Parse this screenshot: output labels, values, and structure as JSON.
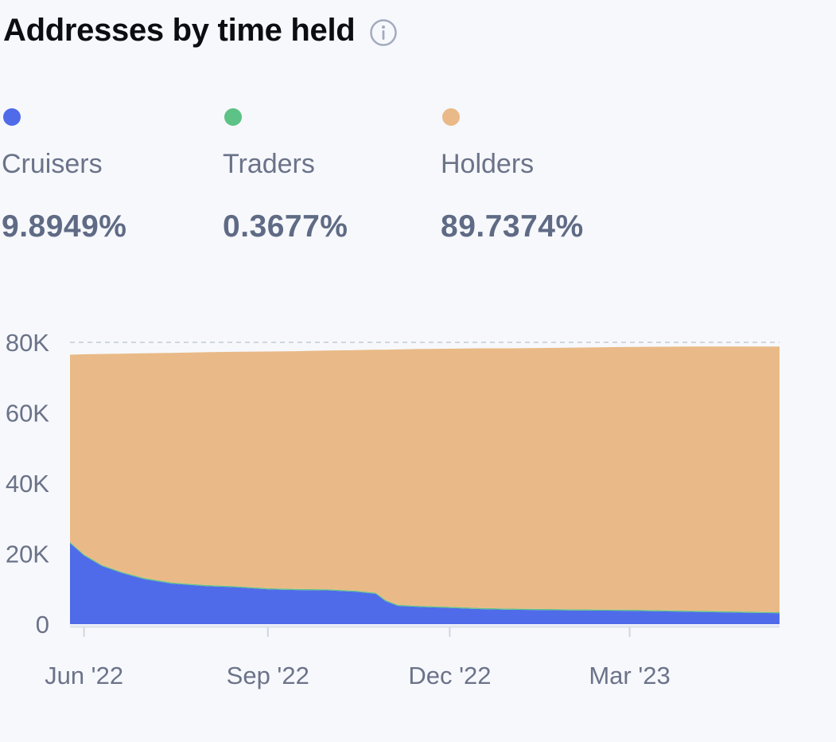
{
  "header": {
    "title": "Addresses by time held",
    "info_icon": "info-circle-icon"
  },
  "legend": [
    {
      "name": "Cruisers",
      "value": "9.8949%",
      "color": "#4f6bea"
    },
    {
      "name": "Traders",
      "value": "0.3677%",
      "color": "#5cc285"
    },
    {
      "name": "Holders",
      "value": "89.7374%",
      "color": "#e9ba87"
    }
  ],
  "chart_data": {
    "type": "area",
    "stacked": true,
    "x_tick_labels": [
      "Jun '22",
      "Sep '22",
      "Dec '22",
      "Mar '23"
    ],
    "y_tick_labels": [
      "0",
      "20K",
      "40K",
      "60K",
      "80K"
    ],
    "ylim": [
      0,
      80000
    ],
    "x_range": [
      "2022-05-25",
      "2023-05-15"
    ],
    "grid": "dashed top line",
    "series": [
      {
        "name": "Cruisers",
        "color": "#4f6bea",
        "x": [
          "2022-05-25",
          "2022-06-01",
          "2022-06-10",
          "2022-06-20",
          "2022-07-01",
          "2022-07-15",
          "2022-08-01",
          "2022-08-15",
          "2022-09-01",
          "2022-09-15",
          "2022-10-01",
          "2022-10-15",
          "2022-10-25",
          "2022-10-30",
          "2022-11-05",
          "2022-11-15",
          "2022-12-01",
          "2022-12-15",
          "2023-01-01",
          "2023-02-01",
          "2023-03-01",
          "2023-04-01",
          "2023-05-01",
          "2023-05-15"
        ],
        "y": [
          23000,
          19500,
          16500,
          14500,
          12800,
          11500,
          10800,
          10500,
          9900,
          9700,
          9600,
          9200,
          8600,
          6500,
          5200,
          4900,
          4600,
          4300,
          4100,
          3900,
          3800,
          3500,
          3200,
          3100
        ]
      },
      {
        "name": "Traders",
        "color": "#5cc285",
        "x": [
          "2022-05-25",
          "2022-09-01",
          "2022-12-01",
          "2023-05-15"
        ],
        "y": [
          300,
          300,
          300,
          300
        ]
      },
      {
        "name": "Holders",
        "color": "#e9ba87",
        "x": [
          "2022-05-25",
          "2022-06-01",
          "2022-06-10",
          "2022-06-20",
          "2022-07-01",
          "2022-07-15",
          "2022-08-01",
          "2022-08-15",
          "2022-09-01",
          "2022-09-15",
          "2022-10-01",
          "2022-10-15",
          "2022-10-25",
          "2022-10-30",
          "2022-11-05",
          "2022-11-15",
          "2022-12-01",
          "2022-12-15",
          "2023-01-01",
          "2023-02-01",
          "2023-03-01",
          "2023-04-01",
          "2023-05-01",
          "2023-05-15"
        ],
        "y": [
          53200,
          56800,
          59900,
          62000,
          63800,
          65200,
          66100,
          66500,
          67200,
          67500,
          67800,
          68300,
          69000,
          71100,
          72500,
          72900,
          73300,
          73700,
          73900,
          74300,
          74600,
          75000,
          75300,
          75400
        ]
      }
    ]
  }
}
